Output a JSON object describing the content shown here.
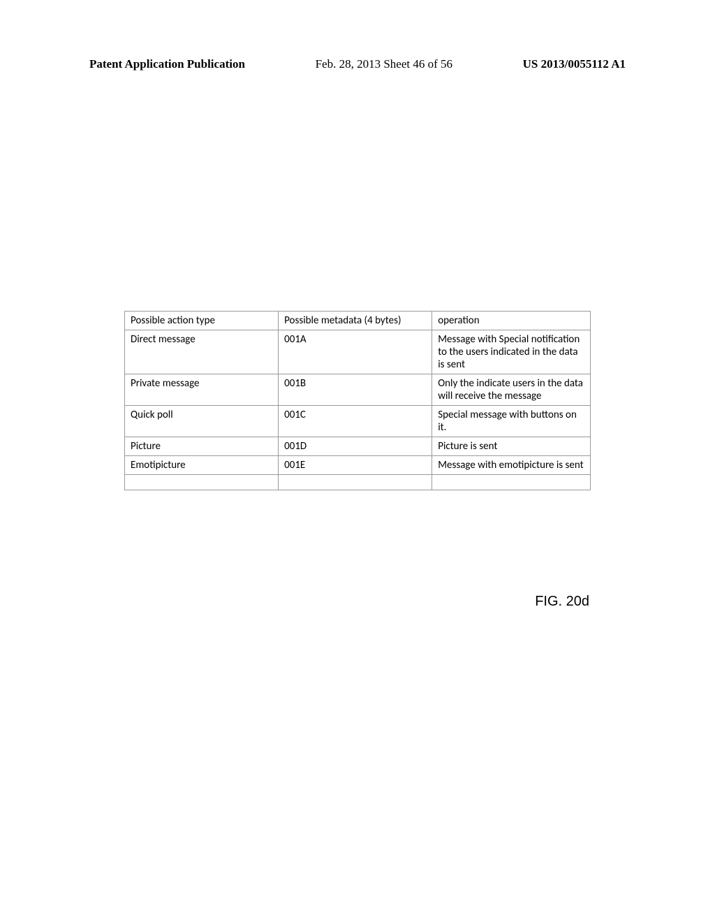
{
  "header": {
    "left": "Patent Application Publication",
    "center": "Feb. 28, 2013  Sheet 46 of 56",
    "right": "US 2013/0055112 A1"
  },
  "table": {
    "type": "table",
    "border_color": "#999999",
    "background_color": "#ffffff",
    "font_family": "Calibri",
    "font_size": 15,
    "columns": [
      "Possible action type",
      "Possible metadata (4 bytes)",
      "operation"
    ],
    "rows": [
      [
        "Direct message",
        "001A",
        "Message with Special notification to the users indicated in the data is sent"
      ],
      [
        "Private message",
        "001B",
        "Only the indicate users in the data will receive the message"
      ],
      [
        "Quick poll",
        "001C",
        "Special message with buttons on it."
      ],
      [
        "Picture",
        "001D",
        "Picture is sent"
      ],
      [
        "Emotipicture",
        "001E",
        "Message with emotipicture is sent"
      ],
      [
        "",
        "",
        ""
      ]
    ]
  },
  "figure_label": "FIG. 20d"
}
